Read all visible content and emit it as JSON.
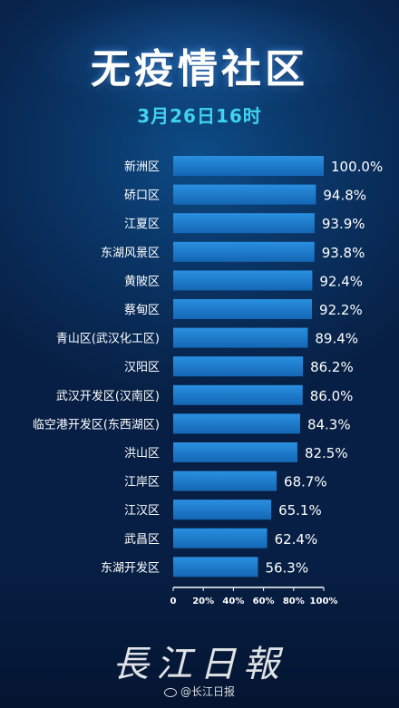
{
  "title": "无疫情社区",
  "subtitle": "3月26日16时",
  "logo_text": "長江日報",
  "watermark": "@长江日报",
  "colors": {
    "bar": "#1878c8",
    "accent": "#3fd3f0"
  },
  "chart_data": {
    "type": "bar",
    "orientation": "horizontal",
    "categories": [
      "新洲区",
      "硚口区",
      "江夏区",
      "东湖风景区",
      "黄陂区",
      "蔡甸区",
      "青山区(武汉化工区)",
      "汉阳区",
      "武汉开发区(汉南区)",
      "临空港开发区(东西湖区)",
      "洪山区",
      "江岸区",
      "江汉区",
      "武昌区",
      "东湖开发区"
    ],
    "values": [
      100.0,
      94.8,
      93.9,
      93.8,
      92.4,
      92.2,
      89.4,
      86.2,
      86.0,
      84.3,
      82.5,
      68.7,
      65.1,
      62.4,
      56.3
    ],
    "value_labels": [
      "100.0%",
      "94.8%",
      "93.9%",
      "93.8%",
      "92.4%",
      "92.2%",
      "89.4%",
      "86.2%",
      "86.0%",
      "84.3%",
      "82.5%",
      "68.7%",
      "65.1%",
      "62.4%",
      "56.3%"
    ],
    "xlim": [
      0,
      100
    ],
    "xticks": [
      "0",
      "20%",
      "40%",
      "60%",
      "80%",
      "100%"
    ],
    "xtick_values": [
      0,
      20,
      40,
      60,
      80,
      100
    ],
    "grid": false,
    "legend": "none"
  }
}
